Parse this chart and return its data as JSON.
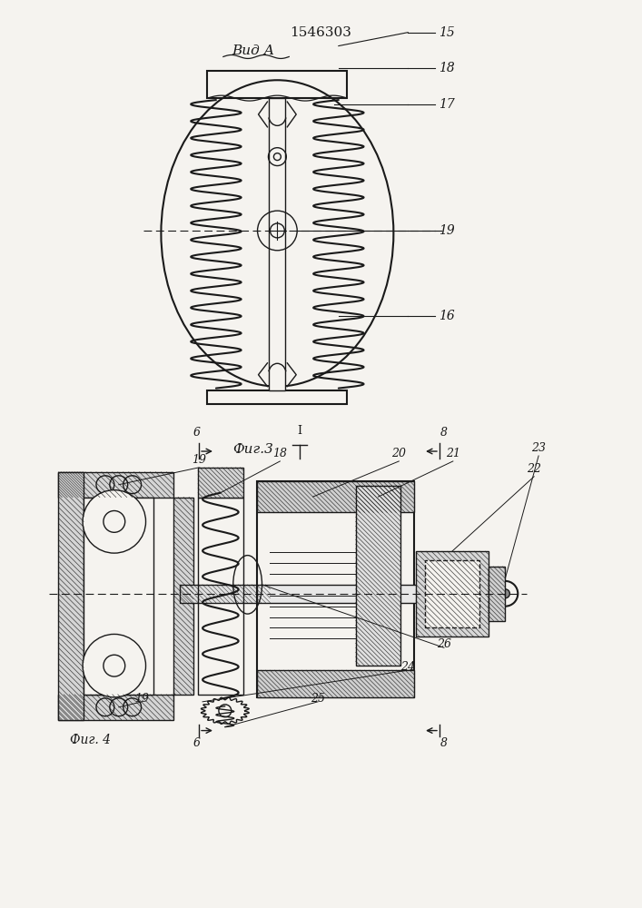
{
  "title": "1546303",
  "fig3_label": "Фиг.3",
  "fig4_label": "Фиг. 4",
  "vid_a_label": "Вид А",
  "bg_color": "#f5f3ef",
  "line_color": "#1a1a1a"
}
